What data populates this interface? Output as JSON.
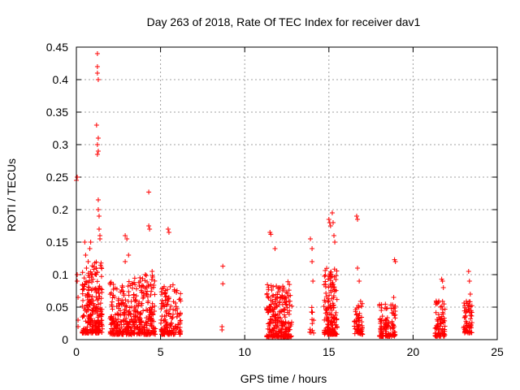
{
  "chart_data": {
    "type": "scatter",
    "title": "Day 263 of 2018, Rate Of TEC Index for receiver dav1",
    "xlabel": "GPS time / hours",
    "ylabel": "ROTI / TECUs",
    "xlim": [
      0,
      25
    ],
    "ylim": [
      0,
      0.45
    ],
    "xticks": [
      0,
      5,
      10,
      15,
      20,
      25
    ],
    "yticks": [
      0,
      0.05,
      0.1,
      0.15,
      0.2,
      0.25,
      0.3,
      0.35,
      0.4,
      0.45
    ],
    "grid": true,
    "marker": "+",
    "series": [
      {
        "name": "ROTI",
        "color": "#ff0000",
        "x": [
          0.0,
          0.05,
          0.05,
          0.05,
          0.1,
          0.1,
          0.1,
          1.25,
          1.25,
          1.25,
          1.3,
          1.2,
          1.3,
          1.25,
          1.25,
          1.3,
          1.3,
          1.3,
          1.35,
          1.35,
          1.4,
          1.4,
          4.3,
          4.3,
          4.35,
          2.9,
          3.0,
          5.45,
          5.5,
          8.7,
          8.7,
          8.65,
          8.65,
          11.5,
          11.55,
          11.8,
          13.9,
          14.0,
          14.0,
          14.05,
          15.0,
          15.05,
          15.1,
          15.2,
          15.25,
          15.3,
          15.35,
          16.65,
          16.7,
          16.7,
          16.8,
          18.9,
          18.95,
          18.85,
          21.7,
          21.75,
          21.8,
          23.3,
          23.35,
          23.4,
          0.5,
          0.55,
          0.7,
          0.6,
          0.8,
          0.75,
          0.9,
          0.65,
          0.85,
          1.0,
          3.1,
          2.9,
          2.2,
          4.1,
          3.8,
          4.5
        ],
        "y": [
          0.245,
          0.25,
          0.1,
          0.09,
          0.065,
          0.03,
          0.02,
          0.44,
          0.42,
          0.41,
          0.4,
          0.33,
          0.31,
          0.3,
          0.285,
          0.29,
          0.215,
          0.2,
          0.19,
          0.17,
          0.16,
          0.155,
          0.227,
          0.175,
          0.17,
          0.16,
          0.155,
          0.17,
          0.165,
          0.113,
          0.086,
          0.02,
          0.015,
          0.165,
          0.162,
          0.14,
          0.155,
          0.14,
          0.12,
          0.09,
          0.185,
          0.18,
          0.175,
          0.195,
          0.18,
          0.16,
          0.15,
          0.19,
          0.185,
          0.11,
          0.09,
          0.123,
          0.12,
          0.065,
          0.093,
          0.09,
          0.08,
          0.105,
          0.09,
          0.07,
          0.15,
          0.13,
          0.12,
          0.11,
          0.14,
          0.08,
          0.1,
          0.07,
          0.15,
          0.06,
          0.13,
          0.12,
          0.085,
          0.1,
          0.09,
          0.105
        ]
      }
    ],
    "clusters": [
      {
        "x0": 0.35,
        "x1": 1.55,
        "ylo": 0.01,
        "yhi": 0.12,
        "n": 240
      },
      {
        "x0": 2.0,
        "x1": 3.4,
        "ylo": 0.008,
        "yhi": 0.09,
        "n": 200
      },
      {
        "x0": 3.4,
        "x1": 4.7,
        "ylo": 0.008,
        "yhi": 0.1,
        "n": 200
      },
      {
        "x0": 5.0,
        "x1": 6.2,
        "ylo": 0.008,
        "yhi": 0.085,
        "n": 150
      },
      {
        "x0": 11.3,
        "x1": 12.8,
        "ylo": 0.004,
        "yhi": 0.09,
        "n": 240
      },
      {
        "x0": 13.85,
        "x1": 14.1,
        "ylo": 0.01,
        "yhi": 0.05,
        "n": 12
      },
      {
        "x0": 14.7,
        "x1": 15.5,
        "ylo": 0.008,
        "yhi": 0.11,
        "n": 170
      },
      {
        "x0": 16.5,
        "x1": 17.0,
        "ylo": 0.008,
        "yhi": 0.06,
        "n": 60
      },
      {
        "x0": 18.0,
        "x1": 18.95,
        "ylo": 0.005,
        "yhi": 0.055,
        "n": 110
      },
      {
        "x0": 21.3,
        "x1": 21.9,
        "ylo": 0.005,
        "yhi": 0.06,
        "n": 80
      },
      {
        "x0": 23.0,
        "x1": 23.5,
        "ylo": 0.01,
        "yhi": 0.06,
        "n": 70
      }
    ]
  }
}
